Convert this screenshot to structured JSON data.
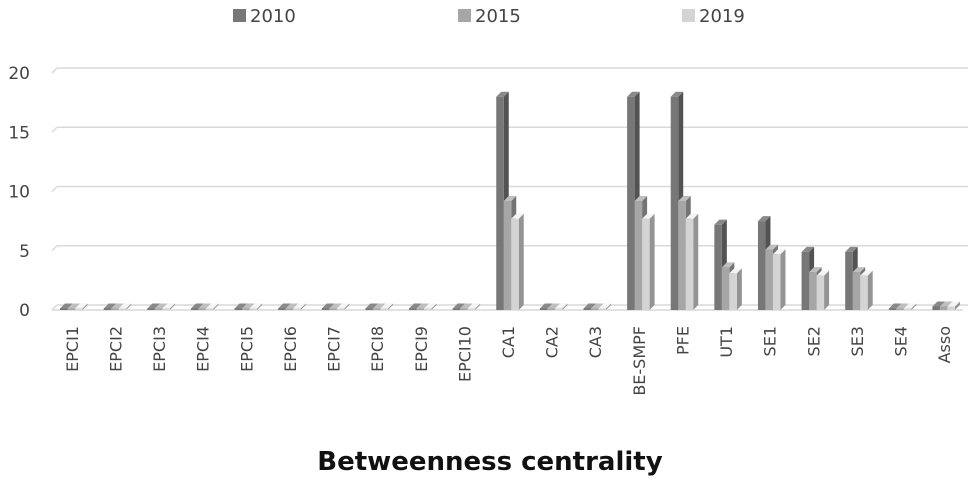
{
  "chart_data": {
    "type": "bar",
    "title": "",
    "xlabel": "Betweenness centrality",
    "ylabel": "",
    "ylim": [
      0,
      20
    ],
    "yticks": [
      0,
      5,
      10,
      15,
      20
    ],
    "grid": true,
    "legend_position": "top",
    "categories": [
      "EPCI1",
      "EPCI2",
      "EPCI3",
      "EPCI4",
      "EPCI5",
      "EPCI6",
      "EPCI7",
      "EPCI8",
      "EPCI9",
      "EPCI10",
      "CA1",
      "CA2",
      "CA3",
      "BE-SMPF",
      "PFE",
      "UT1",
      "SE1",
      "SE2",
      "SE3",
      "SE4",
      "Asso"
    ],
    "series": [
      {
        "name": "2010",
        "color": "#777777",
        "values": [
          0,
          0,
          0,
          0,
          0,
          0,
          0,
          0,
          0,
          0,
          18,
          0,
          0,
          18,
          18,
          7.2,
          7.5,
          4.9,
          4.9,
          0,
          0.3
        ]
      },
      {
        "name": "2015",
        "color": "#a6a6a6",
        "values": [
          0,
          0,
          0,
          0,
          0,
          0,
          0,
          0,
          0,
          0,
          9.2,
          0,
          0,
          9.2,
          9.2,
          3.6,
          5.1,
          3.2,
          3.2,
          0,
          0.3
        ]
      },
      {
        "name": "2019",
        "color": "#d4d4d4",
        "values": [
          0,
          0,
          0,
          0,
          0,
          0,
          0,
          0,
          0,
          0,
          7.7,
          0,
          0,
          7.7,
          7.7,
          3.1,
          4.7,
          2.9,
          2.9,
          0,
          0.3
        ]
      }
    ]
  }
}
